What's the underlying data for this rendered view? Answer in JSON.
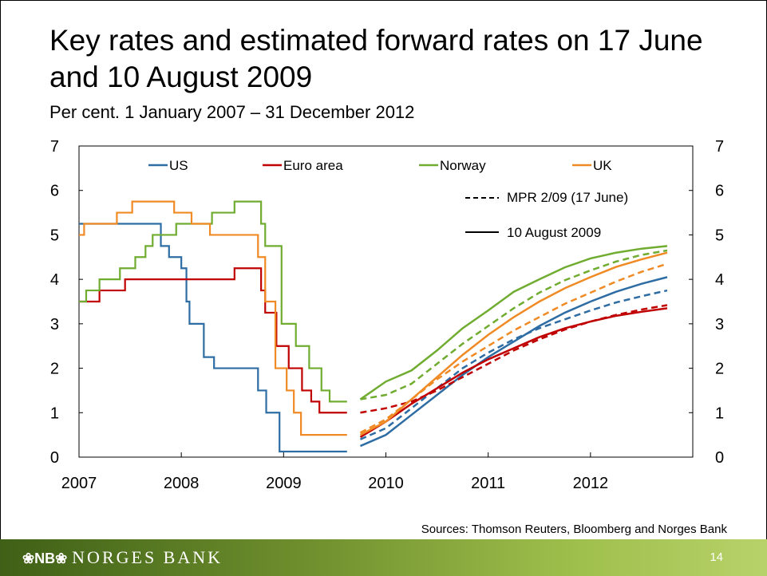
{
  "slide": {
    "title": "Key rates and estimated forward rates on 17 June and 10 August 2009",
    "subtitle": "Per cent. 1 January 2007 – 31 December 2012",
    "sources": "Sources: Thomson Reuters, Bloomberg and Norges Bank",
    "logo_mark": "❀NB❀",
    "logo_text": "NORGES BANK",
    "page_number": "14"
  },
  "chart_data": {
    "type": "line",
    "title": "",
    "xlabel": "",
    "ylabel": "",
    "xlim": [
      2007.0,
      2013.0
    ],
    "ylim": [
      0,
      7
    ],
    "y_ticks": [
      0,
      1,
      2,
      3,
      4,
      5,
      6,
      7
    ],
    "x_tick_labels": [
      "2007",
      "2008",
      "2009",
      "2010",
      "2011",
      "2012"
    ],
    "x_tick_values": [
      2007,
      2008,
      2009,
      2010,
      2011,
      2012
    ],
    "colors": {
      "US": "#2e6da4",
      "Euro area": "#c00000",
      "Norway": "#6fac30",
      "UK": "#f08a24"
    },
    "legend": {
      "placement": "top",
      "series_labels": [
        "US",
        "Euro area",
        "Norway",
        "UK"
      ],
      "style_labels": [
        "MPR 2/09 (17 June)",
        "10 August 2009"
      ]
    },
    "series": [
      {
        "name": "US",
        "kind": "key",
        "step": true,
        "x": [
          2007.0,
          2007.72,
          2007.8,
          2007.88,
          2008.0,
          2008.05,
          2008.08,
          2008.1,
          2008.22,
          2008.32,
          2008.75,
          2008.8,
          2008.83,
          2008.96,
          2009.0,
          2009.62
        ],
        "y": [
          5.25,
          5.25,
          4.75,
          4.5,
          4.25,
          3.5,
          3.0,
          3.0,
          2.25,
          2.0,
          1.5,
          1.5,
          1.0,
          0.125,
          0.125,
          0.125
        ]
      },
      {
        "name": "Euro area",
        "kind": "key",
        "step": true,
        "x": [
          2007.0,
          2007.2,
          2007.45,
          2008.52,
          2008.78,
          2008.82,
          2008.86,
          2008.93,
          2009.05,
          2009.18,
          2009.27,
          2009.35,
          2009.62
        ],
        "y": [
          3.5,
          3.75,
          4.0,
          4.25,
          3.75,
          3.25,
          3.25,
          2.5,
          2.0,
          1.5,
          1.25,
          1.0,
          1.0
        ]
      },
      {
        "name": "Norway",
        "kind": "key",
        "step": true,
        "x": [
          2007.0,
          2007.07,
          2007.2,
          2007.4,
          2007.47,
          2007.55,
          2007.65,
          2007.72,
          2007.95,
          2008.3,
          2008.4,
          2008.52,
          2008.78,
          2008.82,
          2008.85,
          2008.98,
          2009.12,
          2009.25,
          2009.37,
          2009.45,
          2009.62
        ],
        "y": [
          3.5,
          3.75,
          4.0,
          4.25,
          4.25,
          4.5,
          4.75,
          5.0,
          5.25,
          5.5,
          5.5,
          5.75,
          5.25,
          4.75,
          4.75,
          3.0,
          2.5,
          2.0,
          1.5,
          1.25,
          1.25
        ]
      },
      {
        "name": "UK",
        "kind": "key",
        "step": true,
        "x": [
          2007.0,
          2007.05,
          2007.37,
          2007.52,
          2007.93,
          2008.1,
          2008.28,
          2008.75,
          2008.82,
          2008.92,
          2009.03,
          2009.1,
          2009.17,
          2009.62
        ],
        "y": [
          5.0,
          5.25,
          5.5,
          5.75,
          5.5,
          5.25,
          5.0,
          4.5,
          3.5,
          2.0,
          1.5,
          1.0,
          0.5,
          0.5
        ]
      },
      {
        "name": "US MPR 2/09 (17 June)",
        "kind": "mpr",
        "x": [
          2009.75,
          2010.0,
          2010.25,
          2010.5,
          2010.75,
          2011.0,
          2011.25,
          2011.5,
          2011.75,
          2012.0,
          2012.25,
          2012.5,
          2012.75
        ],
        "y": [
          0.4,
          0.65,
          1.1,
          1.55,
          2.0,
          2.35,
          2.65,
          2.9,
          3.1,
          3.3,
          3.48,
          3.62,
          3.75
        ]
      },
      {
        "name": "US 10 August 2009",
        "kind": "aug",
        "x": [
          2009.75,
          2010.0,
          2010.25,
          2010.5,
          2010.75,
          2011.0,
          2011.25,
          2011.5,
          2011.75,
          2012.0,
          2012.25,
          2012.5,
          2012.75
        ],
        "y": [
          0.25,
          0.5,
          0.95,
          1.4,
          1.85,
          2.25,
          2.6,
          2.95,
          3.25,
          3.5,
          3.72,
          3.9,
          4.05
        ]
      },
      {
        "name": "Euro area MPR 2/09 (17 June)",
        "kind": "mpr",
        "x": [
          2009.75,
          2010.0,
          2010.25,
          2010.5,
          2010.75,
          2011.0,
          2011.25,
          2011.5,
          2011.75,
          2012.0,
          2012.25,
          2012.5,
          2012.75
        ],
        "y": [
          1.0,
          1.1,
          1.25,
          1.5,
          1.8,
          2.1,
          2.4,
          2.65,
          2.87,
          3.05,
          3.2,
          3.32,
          3.42
        ]
      },
      {
        "name": "Euro area 10 August 2009",
        "kind": "aug",
        "x": [
          2009.75,
          2010.0,
          2010.25,
          2010.5,
          2010.75,
          2011.0,
          2011.25,
          2011.5,
          2011.75,
          2012.0,
          2012.25,
          2012.5,
          2012.75
        ],
        "y": [
          0.45,
          0.8,
          1.2,
          1.55,
          1.9,
          2.2,
          2.45,
          2.7,
          2.9,
          3.05,
          3.18,
          3.27,
          3.35
        ]
      },
      {
        "name": "Norway MPR 2/09 (17 June)",
        "kind": "mpr",
        "x": [
          2009.75,
          2010.0,
          2010.25,
          2010.5,
          2010.75,
          2011.0,
          2011.25,
          2011.5,
          2011.75,
          2012.0,
          2012.25,
          2012.5,
          2012.75
        ],
        "y": [
          1.3,
          1.4,
          1.65,
          2.1,
          2.55,
          2.95,
          3.35,
          3.7,
          3.98,
          4.2,
          4.4,
          4.55,
          4.65
        ]
      },
      {
        "name": "Norway 10 August 2009",
        "kind": "aug",
        "x": [
          2009.75,
          2010.0,
          2010.25,
          2010.5,
          2010.75,
          2011.0,
          2011.25,
          2011.5,
          2011.75,
          2012.0,
          2012.25,
          2012.5,
          2012.75
        ],
        "y": [
          1.3,
          1.7,
          1.95,
          2.4,
          2.9,
          3.3,
          3.72,
          4.0,
          4.27,
          4.47,
          4.6,
          4.69,
          4.75
        ]
      },
      {
        "name": "UK MPR 2/09 (17 June)",
        "kind": "mpr",
        "x": [
          2009.75,
          2010.0,
          2010.25,
          2010.5,
          2010.75,
          2011.0,
          2011.25,
          2011.5,
          2011.75,
          2012.0,
          2012.25,
          2012.5,
          2012.75
        ],
        "y": [
          0.55,
          0.85,
          1.3,
          1.75,
          2.15,
          2.5,
          2.85,
          3.15,
          3.45,
          3.7,
          3.95,
          4.17,
          4.35
        ]
      },
      {
        "name": "UK 10 August 2009",
        "kind": "aug",
        "x": [
          2009.75,
          2010.0,
          2010.25,
          2010.5,
          2010.75,
          2011.0,
          2011.25,
          2011.5,
          2011.75,
          2012.0,
          2012.25,
          2012.5,
          2012.75
        ],
        "y": [
          0.5,
          0.8,
          1.3,
          1.8,
          2.3,
          2.75,
          3.15,
          3.5,
          3.8,
          4.05,
          4.28,
          4.45,
          4.6
        ]
      }
    ]
  }
}
